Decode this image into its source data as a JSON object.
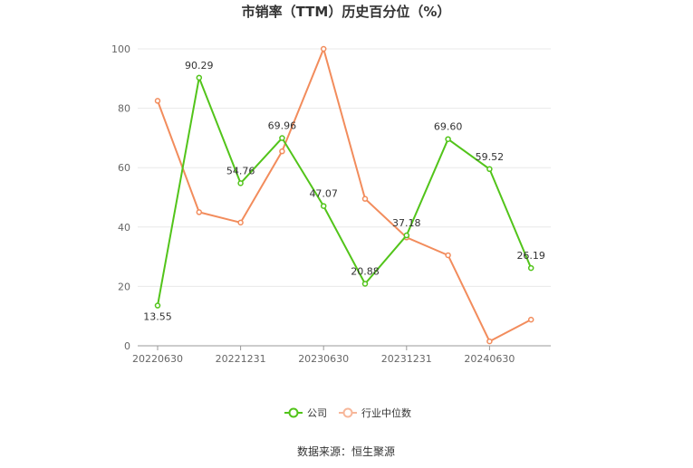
{
  "chart_data": {
    "type": "line",
    "title": "市销率（TTM）历史百分位（%）",
    "x": [
      "20220630",
      "20220930",
      "20221231",
      "20230331",
      "20230630",
      "20230930",
      "20231231",
      "20240331",
      "20240630",
      "20240930"
    ],
    "x_tick_labels": [
      "20220630",
      "20221231",
      "20230630",
      "20231231",
      "20240630"
    ],
    "ylim": [
      0,
      100
    ],
    "y_ticks": [
      0,
      20,
      40,
      60,
      80,
      100
    ],
    "grid": true,
    "legend_position": "bottom-center",
    "series": [
      {
        "name": "公司",
        "color": "#52c41a",
        "values": [
          13.55,
          90.29,
          54.76,
          69.96,
          47.07,
          20.88,
          37.18,
          69.6,
          59.52,
          26.19
        ],
        "labels": [
          "13.55",
          "90.29",
          "54.76",
          "69.96",
          "47.07",
          "20.88",
          "37.18",
          "69.60",
          "59.52",
          "26.19"
        ]
      },
      {
        "name": "行业中位数",
        "color": "#f28c5c",
        "values": [
          82.5,
          45.0,
          41.5,
          65.5,
          100,
          49.5,
          36.5,
          30.5,
          1.5,
          8.8
        ]
      }
    ]
  },
  "source_text": "数据来源：恒生聚源"
}
